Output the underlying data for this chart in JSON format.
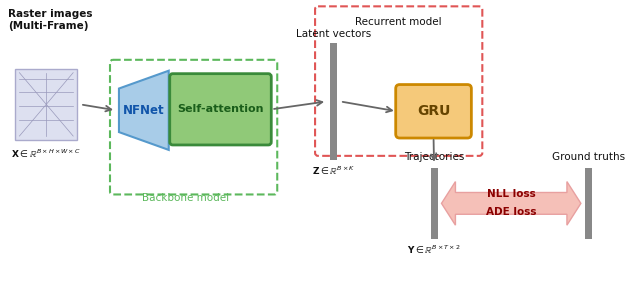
{
  "bg_color": "#ffffff",
  "raster_label": "Raster images\n(Multi-Frame)",
  "x_label": "$\\mathbf{X} \\in \\mathbb{R}^{B \\times H \\times W \\times C}$",
  "z_label": "$\\mathbf{Z} \\in \\mathbb{R}^{B \\times K}$",
  "y_label": "$\\mathbf{Y} \\in \\mathbb{R}^{B \\times T \\times 2}$",
  "latent_label": "Latent vectors",
  "trajectories_label": "Trajectories",
  "ground_truths_label": "Ground truths",
  "backbone_label": "Backbone model",
  "recurrent_label": "Recurrent model",
  "nfnet_label": "NFNet",
  "self_attention_label": "Self-attention",
  "gru_label": "GRU",
  "loss_line1": "NLL loss",
  "loss_line2": "ADE loss",
  "nfnet_color": "#a8cce8",
  "nfnet_edge": "#5599cc",
  "self_attention_color": "#90c978",
  "self_attention_edge": "#3a8a3a",
  "gru_color": "#f5c97a",
  "gru_edge": "#cc8800",
  "backbone_border_color": "#5cb85c",
  "recurrent_border_color": "#e05555",
  "arrow_color": "#666666",
  "loss_text_color": "#8b0000",
  "loss_fill_color": "#f5c0b8",
  "loss_edge_color": "#e8a0a0",
  "bar_color": "#888888",
  "img_fill": "#dde0f0",
  "img_line": "#9999bb",
  "img_edge": "#aaaacc"
}
